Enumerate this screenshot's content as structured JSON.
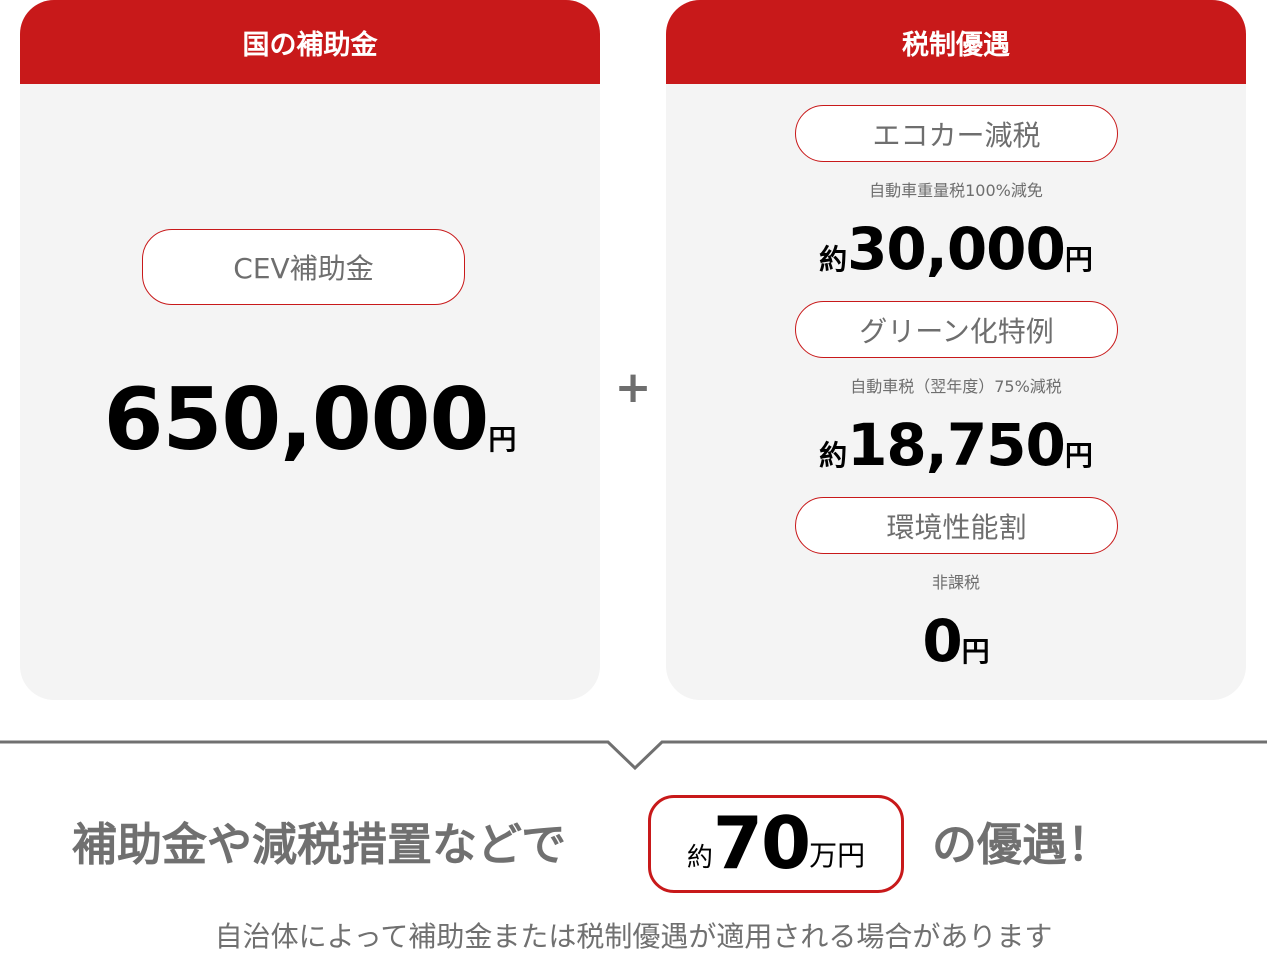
{
  "subsidy": {
    "header": "国の補助金",
    "pill": "CEV補助金",
    "amount": "650,000",
    "unit": "円"
  },
  "plus": "+",
  "tax": {
    "header": "税制優遇",
    "items": [
      {
        "pill": "エコカー減税",
        "note": "自動車重量税100%減免",
        "prefix": "約",
        "amount": "30,000",
        "unit": "円"
      },
      {
        "pill": "グリーン化特例",
        "note": "自動車税（翌年度）75%減税",
        "prefix": "約",
        "amount": "18,750",
        "unit": "円"
      },
      {
        "pill": "環境性能割",
        "note": "非課税",
        "prefix": "",
        "amount": "0",
        "unit": "円"
      }
    ]
  },
  "summary": {
    "lead": "補助金や減税措置などで",
    "prefix": "約",
    "amount": "70",
    "unit": "万円",
    "tail": "の優遇！"
  },
  "footnote": "自治体によって補助金または税制優遇が適用される場合があります",
  "colors": {
    "accent": "#c8191a",
    "card": "#f4f4f4",
    "text_gray": "#707070"
  }
}
